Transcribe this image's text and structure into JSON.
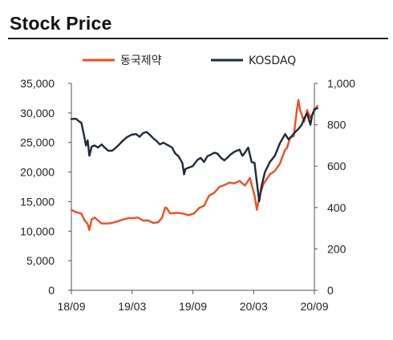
{
  "title": "Stock Price",
  "chart_data": {
    "type": "line",
    "x_tick_labels": [
      "18/09",
      "19/03",
      "19/09",
      "20/03",
      "20/09"
    ],
    "y_left": {
      "min": 0,
      "max": 35000,
      "tick_labels": [
        "0",
        "5,000",
        "10,000",
        "15,000",
        "20,000",
        "25,000",
        "30,000",
        "35,000"
      ]
    },
    "y_right": {
      "min": 0,
      "max": 1000,
      "tick_labels": [
        "0",
        "200",
        "400",
        "600",
        "800",
        "1,000"
      ]
    },
    "legend_position": "top",
    "grid": false,
    "series": [
      {
        "name": "동국제약",
        "axis": "left",
        "color": "#f04e23",
        "points": [
          [
            "2018-09-01",
            13600
          ],
          [
            "2018-09-15",
            13200
          ],
          [
            "2018-10-01",
            13000
          ],
          [
            "2018-10-10",
            11900
          ],
          [
            "2018-10-20",
            11200
          ],
          [
            "2018-10-25",
            10200
          ],
          [
            "2018-11-01",
            12000
          ],
          [
            "2018-11-10",
            12300
          ],
          [
            "2018-11-20",
            11800
          ],
          [
            "2018-12-01",
            11300
          ],
          [
            "2018-12-20",
            11300
          ],
          [
            "2019-01-01",
            11400
          ],
          [
            "2019-01-20",
            11700
          ],
          [
            "2019-02-05",
            12000
          ],
          [
            "2019-02-20",
            12200
          ],
          [
            "2019-03-05",
            12200
          ],
          [
            "2019-03-20",
            12300
          ],
          [
            "2019-04-05",
            11800
          ],
          [
            "2019-04-20",
            11800
          ],
          [
            "2019-05-05",
            11400
          ],
          [
            "2019-05-20",
            11500
          ],
          [
            "2019-06-01",
            12300
          ],
          [
            "2019-06-10",
            14000
          ],
          [
            "2019-06-15",
            13900
          ],
          [
            "2019-06-25",
            13000
          ],
          [
            "2019-07-15",
            13100
          ],
          [
            "2019-08-01",
            13000
          ],
          [
            "2019-08-20",
            12700
          ],
          [
            "2019-09-05",
            13000
          ],
          [
            "2019-09-20",
            13900
          ],
          [
            "2019-10-05",
            14300
          ],
          [
            "2019-10-20",
            16000
          ],
          [
            "2019-11-05",
            16500
          ],
          [
            "2019-11-20",
            17500
          ],
          [
            "2019-12-05",
            17800
          ],
          [
            "2019-12-20",
            18200
          ],
          [
            "2020-01-05",
            18100
          ],
          [
            "2020-01-20",
            18500
          ],
          [
            "2020-02-05",
            17700
          ],
          [
            "2020-02-20",
            19000
          ],
          [
            "2020-03-05",
            16000
          ],
          [
            "2020-03-12",
            13600
          ],
          [
            "2020-03-20",
            16000
          ],
          [
            "2020-04-01",
            18000
          ],
          [
            "2020-04-20",
            19600
          ],
          [
            "2020-05-05",
            20200
          ],
          [
            "2020-05-20",
            21400
          ],
          [
            "2020-06-05",
            23800
          ],
          [
            "2020-06-10",
            24000
          ],
          [
            "2020-06-20",
            25800
          ],
          [
            "2020-07-01",
            26100
          ],
          [
            "2020-07-10",
            30400
          ],
          [
            "2020-07-15",
            32200
          ],
          [
            "2020-07-20",
            30500
          ],
          [
            "2020-08-01",
            28500
          ],
          [
            "2020-08-10",
            30500
          ],
          [
            "2020-08-20",
            29200
          ],
          [
            "2020-09-01",
            30400
          ],
          [
            "2020-09-10",
            31200
          ]
        ]
      },
      {
        "name": "KOSDAQ",
        "axis": "right",
        "color": "#1c2b3a",
        "points": [
          [
            "2018-09-01",
            828
          ],
          [
            "2018-09-15",
            829
          ],
          [
            "2018-09-25",
            815
          ],
          [
            "2018-10-01",
            810
          ],
          [
            "2018-10-05",
            780
          ],
          [
            "2018-10-10",
            740
          ],
          [
            "2018-10-15",
            700
          ],
          [
            "2018-10-20",
            725
          ],
          [
            "2018-10-25",
            650
          ],
          [
            "2018-11-01",
            695
          ],
          [
            "2018-11-10",
            700
          ],
          [
            "2018-11-20",
            690
          ],
          [
            "2018-12-01",
            705
          ],
          [
            "2018-12-10",
            690
          ],
          [
            "2018-12-20",
            675
          ],
          [
            "2019-01-01",
            674
          ],
          [
            "2019-01-10",
            685
          ],
          [
            "2019-01-20",
            700
          ],
          [
            "2019-02-01",
            720
          ],
          [
            "2019-02-15",
            740
          ],
          [
            "2019-03-01",
            752
          ],
          [
            "2019-03-15",
            755
          ],
          [
            "2019-03-25",
            742
          ],
          [
            "2019-04-05",
            760
          ],
          [
            "2019-04-15",
            765
          ],
          [
            "2019-04-25",
            752
          ],
          [
            "2019-05-05",
            735
          ],
          [
            "2019-05-15",
            722
          ],
          [
            "2019-05-25",
            705
          ],
          [
            "2019-06-05",
            713
          ],
          [
            "2019-06-20",
            700
          ],
          [
            "2019-07-01",
            690
          ],
          [
            "2019-07-10",
            662
          ],
          [
            "2019-07-20",
            648
          ],
          [
            "2019-08-01",
            615
          ],
          [
            "2019-08-06",
            560
          ],
          [
            "2019-08-10",
            586
          ],
          [
            "2019-08-20",
            593
          ],
          [
            "2019-09-01",
            600
          ],
          [
            "2019-09-15",
            630
          ],
          [
            "2019-09-25",
            640
          ],
          [
            "2019-10-05",
            620
          ],
          [
            "2019-10-15",
            648
          ],
          [
            "2019-10-25",
            655
          ],
          [
            "2019-11-05",
            665
          ],
          [
            "2019-11-15",
            660
          ],
          [
            "2019-11-25",
            640
          ],
          [
            "2019-12-05",
            628
          ],
          [
            "2019-12-15",
            642
          ],
          [
            "2019-12-25",
            658
          ],
          [
            "2020-01-05",
            670
          ],
          [
            "2020-01-20",
            680
          ],
          [
            "2020-01-28",
            650
          ],
          [
            "2020-02-05",
            665
          ],
          [
            "2020-02-15",
            690
          ],
          [
            "2020-02-25",
            620
          ],
          [
            "2020-03-05",
            615
          ],
          [
            "2020-03-12",
            520
          ],
          [
            "2020-03-19",
            430
          ],
          [
            "2020-03-25",
            495
          ],
          [
            "2020-04-05",
            570
          ],
          [
            "2020-04-20",
            620
          ],
          [
            "2020-05-05",
            650
          ],
          [
            "2020-05-20",
            710
          ],
          [
            "2020-06-05",
            755
          ],
          [
            "2020-06-15",
            730
          ],
          [
            "2020-06-25",
            745
          ],
          [
            "2020-07-05",
            765
          ],
          [
            "2020-07-15",
            780
          ],
          [
            "2020-07-25",
            800
          ],
          [
            "2020-08-01",
            830
          ],
          [
            "2020-08-10",
            855
          ],
          [
            "2020-08-20",
            800
          ],
          [
            "2020-08-25",
            845
          ],
          [
            "2020-09-01",
            875
          ],
          [
            "2020-09-10",
            880
          ]
        ]
      }
    ]
  }
}
